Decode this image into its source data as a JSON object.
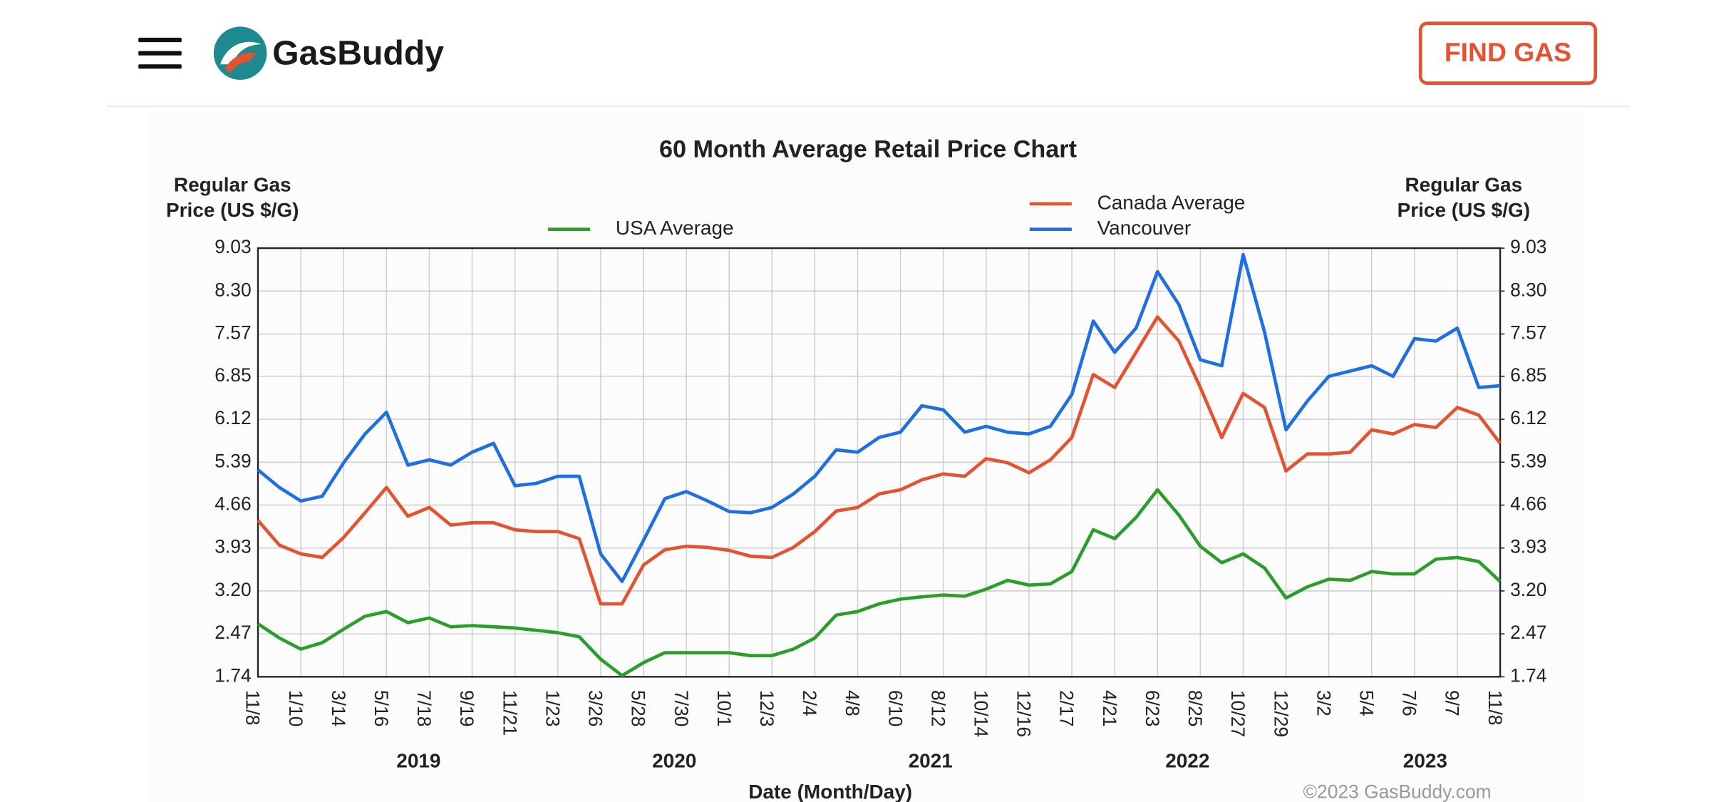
{
  "page": {
    "logo": "GasBuddy",
    "button": "FIND GAS"
  },
  "chart_data": {
    "type": "line",
    "title": "60 Month Average Retail Price Chart",
    "y_label": [
      "Regular Gas",
      "Price (US $/G)"
    ],
    "y2_label": [
      "Regular Gas",
      "Price (US $/G)"
    ],
    "x_label": "Date (Month/Day)",
    "year_labels": [
      "2019",
      "2020",
      "2021",
      "2022",
      "2023"
    ],
    "credit": "©2023 GasBuddy.com",
    "categories": [
      "11/8",
      null,
      "1/10",
      null,
      "3/14",
      null,
      "5/16",
      null,
      "7/18",
      null,
      "9/19",
      null,
      "11/21",
      null,
      "1/23",
      null,
      "3/26",
      null,
      "5/28",
      null,
      "7/30",
      null,
      "10/1",
      null,
      "12/3",
      null,
      "2/4",
      null,
      "4/8",
      null,
      "6/10",
      null,
      "8/12",
      null,
      "10/14",
      null,
      "12/16",
      null,
      "2/17",
      null,
      "4/21",
      null,
      "6/23",
      null,
      "8/25",
      null,
      "10/27",
      null,
      "12/29",
      null,
      "3/2",
      null,
      "5/4",
      null,
      "7/6",
      null,
      "9/7",
      null,
      "11/8"
    ],
    "series": [
      {
        "name": "USA Average",
        "color": "#2a9d2a",
        "values": [
          2.64,
          2.4,
          2.21,
          2.32,
          2.55,
          2.77,
          2.85,
          2.66,
          2.74,
          2.59,
          2.61,
          2.59,
          2.57,
          2.53,
          2.49,
          2.42,
          2.04,
          1.76,
          1.98,
          2.15,
          2.15,
          2.15,
          2.15,
          2.1,
          2.1,
          2.21,
          2.4,
          2.79,
          2.85,
          2.98,
          3.06,
          3.1,
          3.13,
          3.11,
          3.23,
          3.38,
          3.3,
          3.32,
          3.53,
          4.24,
          4.09,
          4.45,
          4.92,
          4.49,
          3.96,
          3.68,
          3.83,
          3.59,
          3.08,
          3.27,
          3.4,
          3.38,
          3.53,
          3.49,
          3.49,
          3.74,
          3.77,
          3.7,
          3.36
        ]
      },
      {
        "name": "Canada Average",
        "color": "#e4532f",
        "values": [
          4.4,
          3.98,
          3.83,
          3.77,
          4.11,
          4.53,
          4.96,
          4.47,
          4.62,
          4.32,
          4.36,
          4.36,
          4.24,
          4.21,
          4.21,
          4.09,
          2.98,
          2.98,
          3.64,
          3.9,
          3.96,
          3.94,
          3.89,
          3.79,
          3.77,
          3.94,
          4.21,
          4.56,
          4.62,
          4.85,
          4.92,
          5.09,
          5.19,
          5.15,
          5.45,
          5.38,
          5.21,
          5.43,
          5.81,
          6.88,
          6.66,
          7.26,
          7.86,
          7.45,
          6.66,
          5.81,
          6.56,
          6.32,
          5.24,
          5.53,
          5.53,
          5.56,
          5.94,
          5.87,
          6.03,
          5.98,
          6.32,
          6.19,
          5.71
        ]
      },
      {
        "name": "Vancouver",
        "color": "#1f6fe0",
        "values": [
          5.26,
          4.96,
          4.73,
          4.81,
          5.38,
          5.87,
          6.24,
          5.34,
          5.43,
          5.34,
          5.56,
          5.71,
          4.99,
          5.03,
          5.15,
          5.15,
          3.83,
          3.36,
          4.06,
          4.77,
          4.89,
          4.73,
          4.55,
          4.53,
          4.62,
          4.85,
          5.15,
          5.6,
          5.56,
          5.81,
          5.9,
          6.35,
          6.28,
          5.9,
          6.0,
          5.9,
          5.87,
          6.0,
          6.54,
          7.79,
          7.26,
          7.67,
          8.63,
          8.07,
          7.13,
          7.03,
          8.92,
          7.6,
          5.94,
          6.43,
          6.85,
          6.94,
          7.03,
          6.85,
          7.49,
          7.45,
          7.67,
          6.66,
          6.69
        ]
      }
    ],
    "ylim": [
      1.74,
      9.03
    ],
    "yticks": [
      1.74,
      2.47,
      {
        "value": 3.2,
        "label": "3.20"
      },
      3.93,
      4.66,
      5.39,
      6.12,
      6.85,
      7.57,
      {
        "value": 8.3,
        "label": "8.30"
      },
      9.03
    ],
    "y2lim": [
      1.74,
      9.03
    ],
    "y2ticks": [
      1.74,
      2.47,
      {
        "value": 3.2,
        "label": "3.20"
      },
      3.93,
      4.66,
      5.39,
      6.12,
      6.85,
      7.57,
      {
        "value": 8.3,
        "label": "8.30"
      },
      9.03
    ],
    "grid": true
  }
}
